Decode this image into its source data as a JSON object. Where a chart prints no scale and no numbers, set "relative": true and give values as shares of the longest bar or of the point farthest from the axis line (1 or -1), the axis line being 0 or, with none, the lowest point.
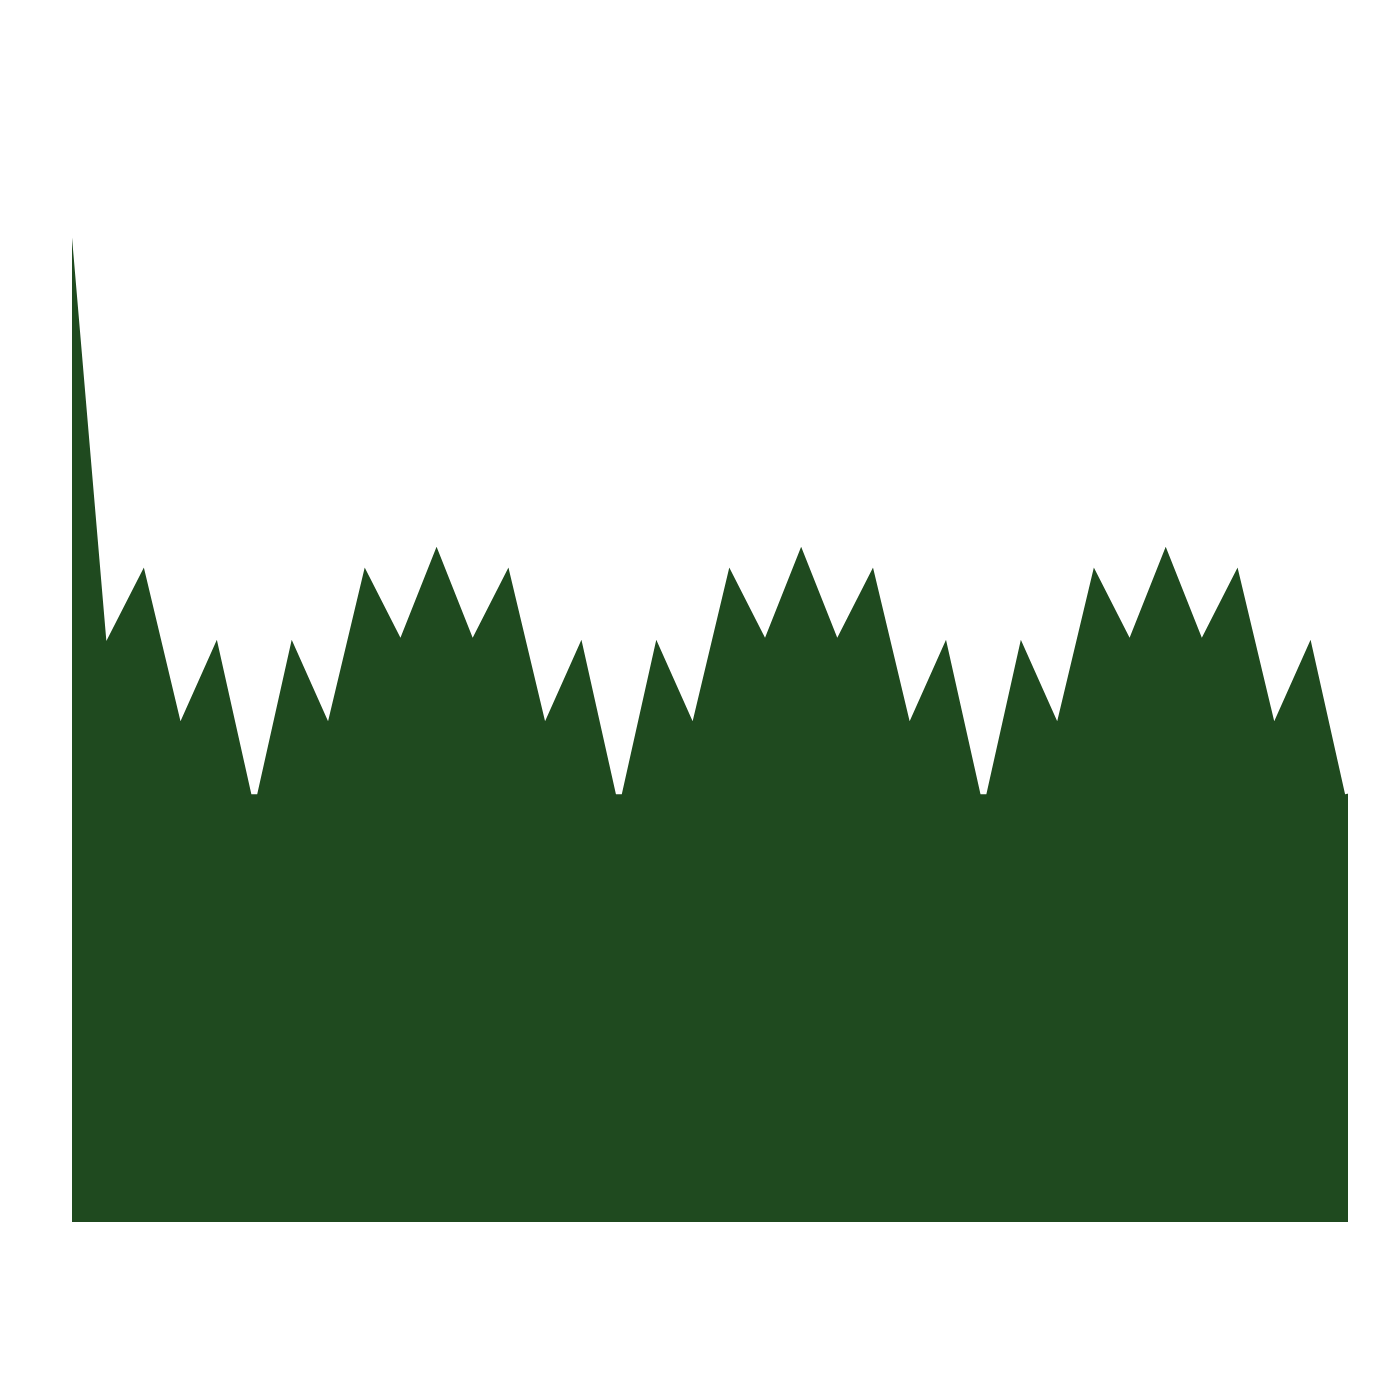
{
  "chart_data": {
    "type": "area",
    "relative": true,
    "color": "#1f4a1f",
    "categories": [
      null,
      null,
      null,
      null,
      null,
      null,
      null,
      null,
      null,
      null,
      null,
      null,
      null,
      null,
      null,
      null,
      null,
      null,
      null,
      null,
      null,
      null,
      null,
      null,
      null,
      null,
      null,
      null,
      null,
      null,
      null,
      null,
      null,
      null,
      null,
      null
    ],
    "values": [
      1.0,
      0.58,
      0.65,
      0.5,
      0.58,
      0.42,
      0.58,
      0.5,
      0.65,
      0.58,
      0.67,
      0.58,
      0.65,
      0.5,
      0.58,
      0.42,
      0.58,
      0.5,
      0.65,
      0.58,
      0.67,
      0.58,
      0.65,
      0.5,
      0.58,
      0.42,
      0.58,
      0.5,
      0.65,
      0.58,
      0.67,
      0.58,
      0.65,
      0.5,
      0.58,
      0.42
    ]
  }
}
